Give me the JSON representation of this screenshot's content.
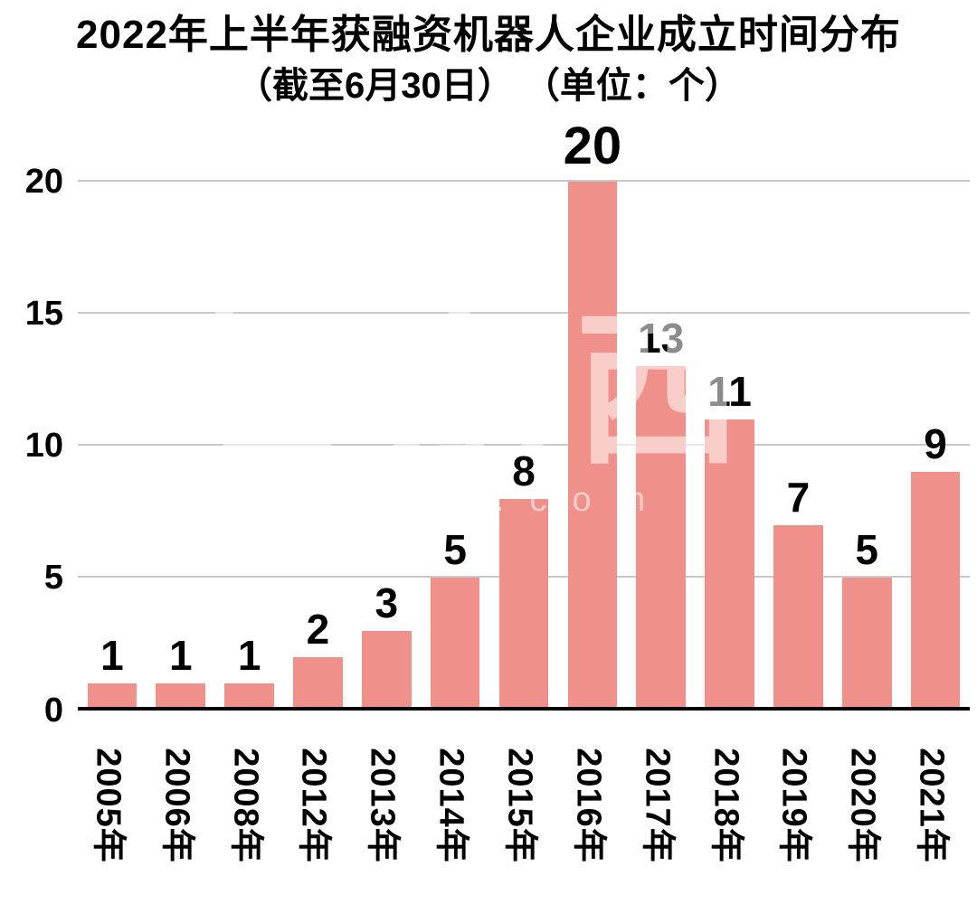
{
  "title": {
    "line1": "2022年上半年获融资机器人企业成立时间分布",
    "line2": "（截至6月30日） （单位：个）"
  },
  "watermark": {
    "logo": "智东西",
    "url": "zhidx.com"
  },
  "chart_data": {
    "type": "bar",
    "title": "2022年上半年获融资机器人企业成立时间分布（截至6月30日）（单位：个）",
    "categories": [
      "2005年",
      "2006年",
      "2008年",
      "2012年",
      "2013年",
      "2014年",
      "2015年",
      "2016年",
      "2017年",
      "2018年",
      "2019年",
      "2020年",
      "2021年"
    ],
    "values": [
      1,
      1,
      1,
      2,
      3,
      5,
      8,
      20,
      13,
      11,
      7,
      5,
      9
    ],
    "xlabel": "",
    "ylabel": "",
    "ylim": [
      0,
      20
    ],
    "yticks": [
      0,
      5,
      10,
      15,
      20
    ],
    "grid": true,
    "legend": false,
    "bar_color": "#f0908a",
    "gridline_color": "#c9c9c9",
    "axis_color": "#000000",
    "label_color": "#000000"
  }
}
